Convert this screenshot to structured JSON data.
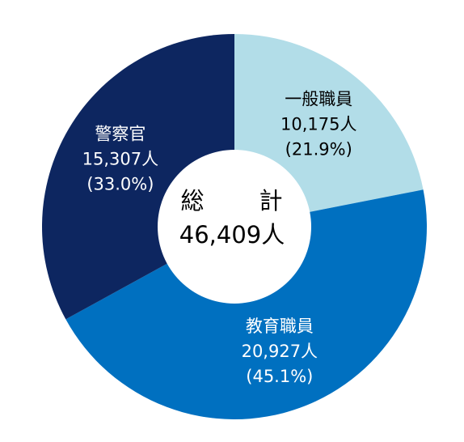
{
  "chart_data": {
    "type": "pie",
    "title": "",
    "center": {
      "line1_left": "総",
      "line1_right": "計",
      "line2": "46,409人"
    },
    "slices": [
      {
        "name": "一般職員",
        "value_label": "10,175人",
        "pct_label": "(21.9%)",
        "value": 10175,
        "percent": 21.9,
        "color": "#b2dde8",
        "text_color": "#000000"
      },
      {
        "name": "教育職員",
        "value_label": "20,927人",
        "pct_label": "(45.1%)",
        "value": 20927,
        "percent": 45.1,
        "color": "#0070c0",
        "text_color": "#ffffff"
      },
      {
        "name": "警察官",
        "value_label": "15,307人",
        "pct_label": "(33.0%)",
        "value": 15307,
        "percent": 33.0,
        "color": "#0d2660",
        "text_color": "#ffffff"
      }
    ]
  }
}
